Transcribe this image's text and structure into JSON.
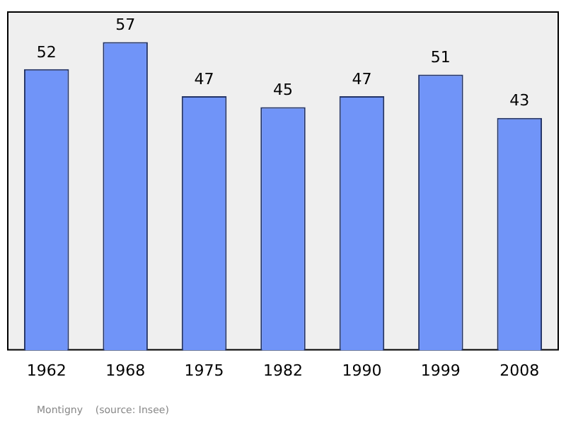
{
  "chart_data": {
    "type": "bar",
    "categories": [
      "1962",
      "1968",
      "1975",
      "1982",
      "1990",
      "1999",
      "2008"
    ],
    "values": [
      52,
      57,
      47,
      45,
      47,
      51,
      43
    ],
    "color": "#7094f8",
    "data_labels": true,
    "grid": false,
    "legend": false,
    "annotations": [
      "Montigny    (source: Insee)"
    ]
  }
}
